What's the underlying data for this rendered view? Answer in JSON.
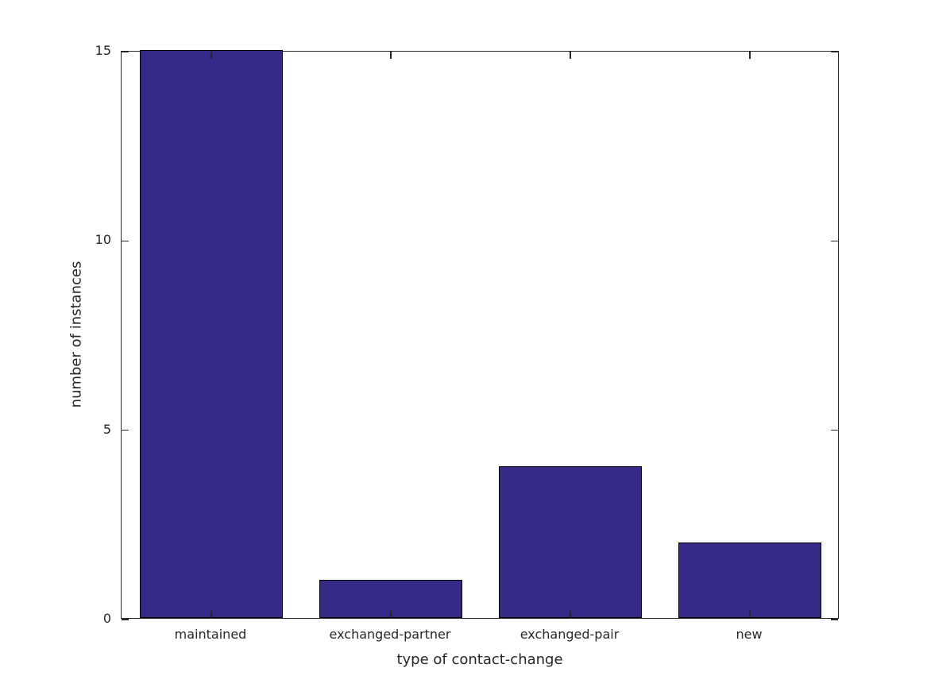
{
  "figure": {
    "background": "#ffffff"
  },
  "chart_data": {
    "type": "bar",
    "title": "",
    "categories": [
      "maintained",
      "exchanged-partner",
      "exchanged-pair",
      "new"
    ],
    "values": [
      15,
      1,
      4,
      2
    ],
    "xlabel": "type of contact-change",
    "ylabel": "number of instances",
    "ylim": [
      0,
      15
    ],
    "yticks": [
      0,
      5,
      10,
      15
    ],
    "bar_width_fraction": 0.8,
    "bar_color": "#352a87",
    "bar_edge_color": "#000000",
    "axis_color": "#262626",
    "text_color": "#262626",
    "grid": false,
    "legend": null,
    "tick_direction": "in",
    "box": true
  }
}
